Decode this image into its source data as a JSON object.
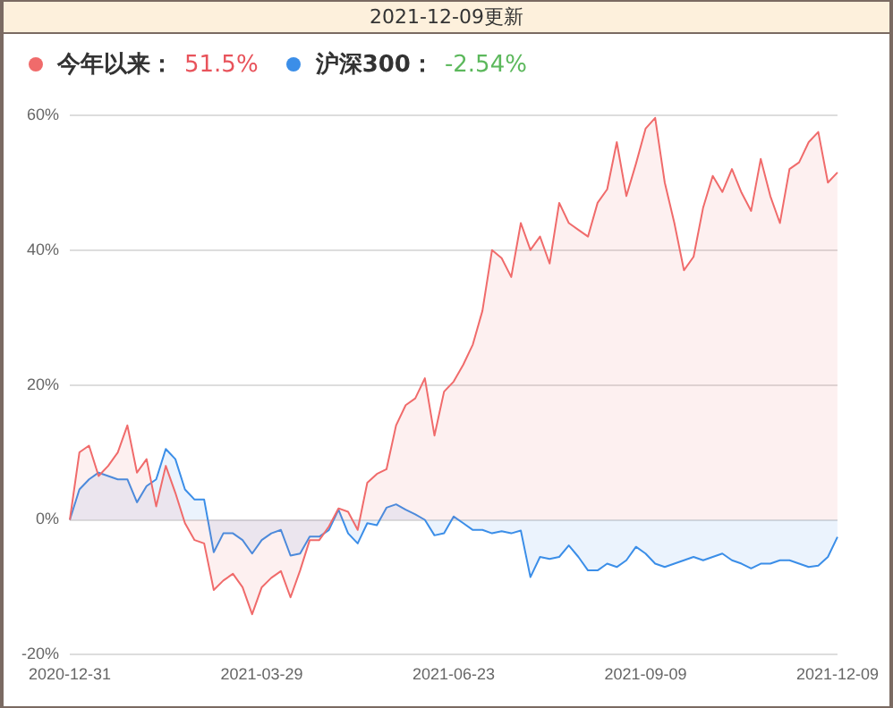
{
  "chart_data": {
    "type": "area",
    "title": "2021-12-09更新",
    "categories": [
      "2020-12-31",
      null,
      null,
      null,
      null,
      null,
      null,
      null,
      null,
      null,
      null,
      null,
      null,
      null,
      null,
      null,
      null,
      null,
      null,
      null,
      "2021-03-29",
      null,
      null,
      null,
      null,
      null,
      null,
      null,
      null,
      null,
      null,
      null,
      null,
      null,
      null,
      null,
      null,
      null,
      null,
      null,
      "2021-06-23",
      null,
      null,
      null,
      null,
      null,
      null,
      null,
      null,
      null,
      null,
      null,
      null,
      null,
      null,
      null,
      null,
      null,
      null,
      null,
      "2021-09-09",
      null,
      null,
      null,
      null,
      null,
      null,
      null,
      null,
      null,
      null,
      null,
      null,
      null,
      null,
      null,
      null,
      null,
      null,
      null,
      "2021-12-09"
    ],
    "series": [
      {
        "name": "今年以来：",
        "color": "#f06b6b",
        "values": [
          0,
          10,
          11,
          6.5,
          8,
          10,
          14,
          7,
          9,
          2,
          8,
          4,
          -0.5,
          -3,
          -3.5,
          -10.4,
          -9,
          -8,
          -10,
          -14,
          -10,
          -8.6,
          -7.6,
          -11.5,
          -7.5,
          -3,
          -3,
          -1,
          1.7,
          1.2,
          -1.5,
          5.5,
          6.8,
          7.5,
          14,
          17,
          18,
          21,
          12.5,
          19,
          20.5,
          23,
          26,
          31,
          40,
          38.8,
          36,
          44,
          40,
          42,
          38,
          47,
          44,
          43,
          42,
          47,
          49,
          56,
          48,
          52.8,
          58,
          59.6,
          50,
          44,
          37,
          39,
          46.3,
          51,
          48.6,
          52,
          48.5,
          45.8,
          53.5,
          48,
          44,
          52,
          53,
          56,
          57.5,
          50,
          51.5
        ]
      },
      {
        "name": "沪深300：",
        "color": "#3b8ee8",
        "values": [
          0,
          4.5,
          6,
          7,
          6.5,
          6,
          6,
          2.6,
          5,
          6,
          10.5,
          9,
          4.5,
          3,
          3,
          -4.8,
          -2,
          -2,
          -3,
          -5,
          -3,
          -2,
          -1.5,
          -5.3,
          -5,
          -2.5,
          -2.5,
          -1.5,
          1.5,
          -2,
          -3.5,
          -0.5,
          -0.8,
          1.8,
          2.3,
          1.5,
          0.8,
          0,
          -2.3,
          -2,
          0.5,
          -0.5,
          -1.5,
          -1.5,
          -2,
          -1.7,
          -2,
          -1.6,
          -8.5,
          -5.5,
          -5.8,
          -5.5,
          -3.8,
          -5.5,
          -7.5,
          -7.5,
          -6.5,
          -7,
          -6,
          -4,
          -5,
          -6.5,
          -7,
          -6.5,
          -6,
          -5.5,
          -6,
          -5.5,
          -5,
          -6,
          -6.5,
          -7.2,
          -6.5,
          -6.5,
          -6,
          -6,
          -6.5,
          -7,
          -6.8,
          -5.5,
          -2.54
        ]
      }
    ],
    "annotations": [
      "51.5%",
      "-2.54%"
    ],
    "ylim": [
      -20,
      60
    ],
    "yticks": [
      {
        "value": -20,
        "label": "-20%"
      },
      {
        "value": 0,
        "label": "0%"
      },
      {
        "value": 20,
        "label": "20%"
      },
      {
        "value": 40,
        "label": "40%"
      },
      {
        "value": 60,
        "label": "60%"
      }
    ],
    "grid": "y",
    "legend": "top left",
    "marker": "none"
  }
}
